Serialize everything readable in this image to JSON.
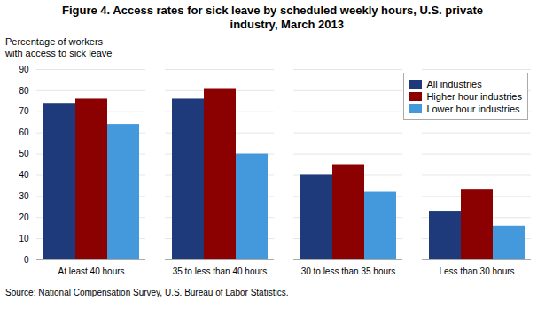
{
  "chart_data": {
    "type": "bar",
    "title": "Figure 4. Access rates for sick leave by scheduled weekly hours, U.S. private\n         industry, March 2013",
    "ylabel": "Percentage of workers\nwith access to sick leave",
    "annotations": [
      "Source: National Compensation Survey, U.S. Bureau of Labor Statistics."
    ],
    "categories": [
      "At least 40 hours",
      "35 to less than 40 hours",
      "30 to less than 35 hours",
      "Less than 30 hours"
    ],
    "series": [
      {
        "name": "All industries",
        "color": "#1F3A7A",
        "values": [
          74,
          76,
          40,
          23
        ]
      },
      {
        "name": "Higher hour industries",
        "color": "#8B0000",
        "values": [
          76,
          81,
          45,
          33
        ]
      },
      {
        "name": "Lower hour industries",
        "color": "#4499DD",
        "values": [
          64,
          50,
          32,
          16
        ]
      }
    ],
    "ylim": [
      0,
      90
    ],
    "yticks": [
      0,
      10,
      20,
      30,
      40,
      50,
      60,
      70,
      80,
      90
    ],
    "grid": true,
    "legend": "upper right"
  }
}
